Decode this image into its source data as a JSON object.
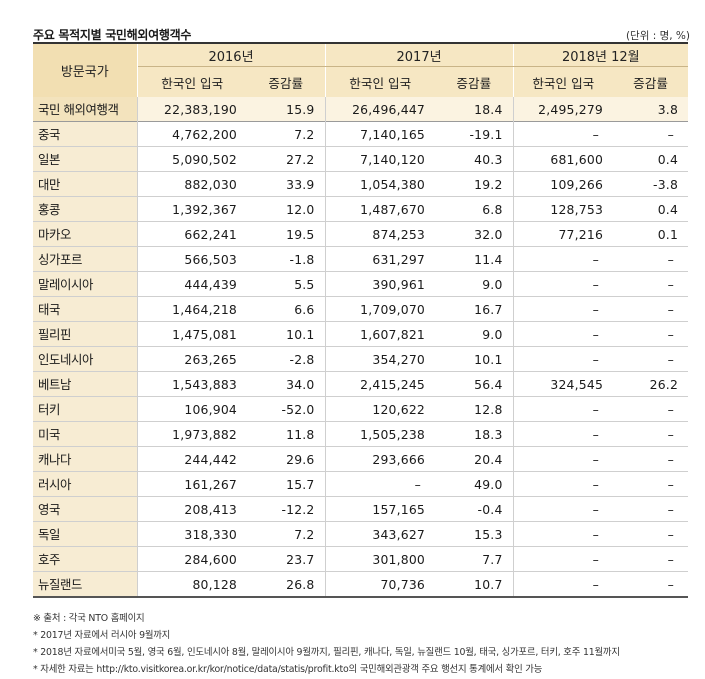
{
  "title": "주요 목적지별  국민해외여행객수",
  "unit": "(단위 : 명, %)",
  "headers": {
    "country": "방문국가",
    "years": [
      "2016년",
      "2017년",
      "2018년 12월"
    ],
    "arrivals": "한국인 입국",
    "growth": "증감률"
  },
  "rows": [
    {
      "country": "국민 해외여행객",
      "a2016": "22,383,190",
      "g2016": "15.9",
      "a2017": "26,496,447",
      "g2017": "18.4",
      "a2018": "2,495,279",
      "g2018": "3.8"
    },
    {
      "country": "중국",
      "a2016": "4,762,200",
      "g2016": "7.2",
      "a2017": "7,140,165",
      "g2017": "-19.1",
      "a2018": "–",
      "g2018": "–"
    },
    {
      "country": "일본",
      "a2016": "5,090,502",
      "g2016": "27.2",
      "a2017": "7,140,120",
      "g2017": "40.3",
      "a2018": "681,600",
      "g2018": "0.4"
    },
    {
      "country": "대만",
      "a2016": "882,030",
      "g2016": "33.9",
      "a2017": "1,054,380",
      "g2017": "19.2",
      "a2018": "109,266",
      "g2018": "-3.8"
    },
    {
      "country": "홍콩",
      "a2016": "1,392,367",
      "g2016": "12.0",
      "a2017": "1,487,670",
      "g2017": "6.8",
      "a2018": "128,753",
      "g2018": "0.4"
    },
    {
      "country": "마카오",
      "a2016": "662,241",
      "g2016": "19.5",
      "a2017": "874,253",
      "g2017": "32.0",
      "a2018": "77,216",
      "g2018": "0.1"
    },
    {
      "country": "싱가포르",
      "a2016": "566,503",
      "g2016": "-1.8",
      "a2017": "631,297",
      "g2017": "11.4",
      "a2018": "–",
      "g2018": "–"
    },
    {
      "country": "말레이시아",
      "a2016": "444,439",
      "g2016": "5.5",
      "a2017": "390,961",
      "g2017": "9.0",
      "a2018": "–",
      "g2018": "–"
    },
    {
      "country": "태국",
      "a2016": "1,464,218",
      "g2016": "6.6",
      "a2017": "1,709,070",
      "g2017": "16.7",
      "a2018": "–",
      "g2018": "–"
    },
    {
      "country": "필리핀",
      "a2016": "1,475,081",
      "g2016": "10.1",
      "a2017": "1,607,821",
      "g2017": "9.0",
      "a2018": "–",
      "g2018": "–"
    },
    {
      "country": "인도네시아",
      "a2016": "263,265",
      "g2016": "-2.8",
      "a2017": "354,270",
      "g2017": "10.1",
      "a2018": "–",
      "g2018": "–"
    },
    {
      "country": "베트남",
      "a2016": "1,543,883",
      "g2016": "34.0",
      "a2017": "2,415,245",
      "g2017": "56.4",
      "a2018": "324,545",
      "g2018": "26.2"
    },
    {
      "country": "터키",
      "a2016": "106,904",
      "g2016": "-52.0",
      "a2017": "120,622",
      "g2017": "12.8",
      "a2018": "–",
      "g2018": "–"
    },
    {
      "country": "미국",
      "a2016": "1,973,882",
      "g2016": "11.8",
      "a2017": "1,505,238",
      "g2017": "18.3",
      "a2018": "–",
      "g2018": "–"
    },
    {
      "country": "캐나다",
      "a2016": "244,442",
      "g2016": "29.6",
      "a2017": "293,666",
      "g2017": "20.4",
      "a2018": "–",
      "g2018": "–"
    },
    {
      "country": "러시아",
      "a2016": "161,267",
      "g2016": "15.7",
      "a2017": "–",
      "g2017": "49.0",
      "a2018": "–",
      "g2018": "–"
    },
    {
      "country": "영국",
      "a2016": "208,413",
      "g2016": "-12.2",
      "a2017": "157,165",
      "g2017": "-0.4",
      "a2018": "–",
      "g2018": "–"
    },
    {
      "country": "독일",
      "a2016": "318,330",
      "g2016": "7.2",
      "a2017": "343,627",
      "g2017": "15.3",
      "a2018": "–",
      "g2018": "–"
    },
    {
      "country": "호주",
      "a2016": "284,600",
      "g2016": "23.7",
      "a2017": "301,800",
      "g2017": "7.7",
      "a2018": "–",
      "g2018": "–"
    },
    {
      "country": "뉴질랜드",
      "a2016": "80,128",
      "g2016": "26.8",
      "a2017": "70,736",
      "g2017": "10.7",
      "a2018": "–",
      "g2018": "–"
    }
  ],
  "notes": [
    "※ 출처 : 각국 NTO 홈페이지",
    "* 2017년 자료에서 러시아 9월까지",
    "* 2018년 자료에서미국 5월, 영국 6월, 인도네시아 8월, 말레이시아 9월까지, 필리핀, 캐나다, 독일, 뉴질랜드 10월, 태국, 싱가포르, 터키, 호주 11월까지",
    "* 자세한  자료는 http://kto.visitkorea.or.kr/kor/notice/data/statis/profit.kto의 국민해외관광객 주요 행선지 통계에서 확인 가능"
  ]
}
